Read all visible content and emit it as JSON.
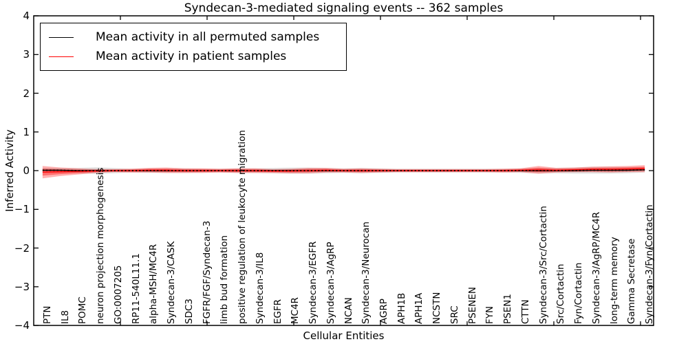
{
  "title": "Syndecan-3-mediated signaling events -- 362 samples",
  "axes": {
    "ylabel": "Inferred Activity",
    "xlabel": "Cellular Entities",
    "yticks": [
      4,
      3,
      2,
      1,
      0,
      -1,
      -2,
      -3,
      -4
    ],
    "ylim": [
      -4,
      4
    ]
  },
  "legend": {
    "entries": [
      {
        "label": "Mean activity in all permuted samples",
        "color": "#000000"
      },
      {
        "label": "Mean activity in patient samples",
        "color": "#ff0000"
      }
    ]
  },
  "colors": {
    "permuted_line": "#000000",
    "patient_line": "#ff0000",
    "permuted_band": "rgba(0,0,0,0.10)",
    "permuted_band_inner": "rgba(0,0,0,0.11)",
    "patient_band": "rgba(255,0,0,0.30)",
    "patient_band_inner": "rgba(255,0,0,0.38)",
    "frame": "#000000"
  },
  "chart_data": {
    "type": "line",
    "title": "Syndecan-3-mediated signaling events -- 362 samples",
    "xlabel": "Cellular Entities",
    "ylabel": "Inferred Activity",
    "ylim": [
      -4,
      4
    ],
    "grid": false,
    "legend_position": "upper left",
    "categories": [
      "PTN",
      "IL8",
      "POMC",
      "neuron projection morphogenesis",
      "GO:0007205",
      "RP11-540L11.1",
      "alpha-MSH/MC4R",
      "Syndecan-3/CASK",
      "SDC3",
      "FGFR/FGF/Syndecan-3",
      "limb bud formation",
      "positive regulation of leukocyte migration",
      "Syndecan-3/IL8",
      "EGFR",
      "MC4R",
      "Syndecan-3/EGFR",
      "Syndecan-3/AgRP",
      "NCAN",
      "Syndecan-3/Neurocan",
      "AGRP",
      "APH1B",
      "APH1A",
      "NCSTN",
      "SRC",
      "PSENEN",
      "FYN",
      "PSEN1",
      "CTTN",
      "Syndecan-3/Src/Cortactin",
      "Src/Cortactin",
      "Fyn/Cortactin",
      "Syndecan-3/AgRP/MC4R",
      "long-term memory",
      "Gamma Secretase",
      "Syndecan-3/Fyn/Cortactin"
    ],
    "series": [
      {
        "name": "Mean activity in all permuted samples",
        "color": "#000000",
        "values": [
          0.01,
          0.01,
          0,
          0,
          0,
          0,
          0,
          0,
          0,
          0,
          0,
          0,
          0,
          0,
          0,
          0,
          0,
          0,
          0,
          0,
          0,
          0,
          0,
          0,
          0,
          0,
          0,
          0,
          0,
          0,
          0,
          0.01,
          0.01,
          0.01,
          0.02
        ],
        "band_halfwidth": [
          0.06,
          0.06,
          0.07,
          0.09,
          0.07,
          0.05,
          0.06,
          0.06,
          0.06,
          0.05,
          0.05,
          0.06,
          0.06,
          0.07,
          0.08,
          0.08,
          0.07,
          0.06,
          0.07,
          0.06,
          0.05,
          0.05,
          0.05,
          0.05,
          0.05,
          0.05,
          0.05,
          0.06,
          0.07,
          0.07,
          0.08,
          0.09,
          0.09,
          0.08,
          0.07
        ]
      },
      {
        "name": "Mean activity in patient samples",
        "color": "#ff0000",
        "values": [
          -0.04,
          -0.03,
          -0.02,
          -0.01,
          0,
          0,
          0.01,
          0.01,
          0,
          0,
          0,
          0,
          0,
          -0.01,
          -0.01,
          0,
          0.01,
          0,
          0,
          0,
          0,
          0,
          0,
          0,
          0,
          0,
          0,
          0.01,
          0.02,
          0.01,
          0.02,
          0.03,
          0.03,
          0.04,
          0.05
        ],
        "band_halfwidth": [
          0.16,
          0.11,
          0.08,
          0.05,
          0.04,
          0.05,
          0.06,
          0.07,
          0.06,
          0.06,
          0.05,
          0.06,
          0.06,
          0.05,
          0.06,
          0.07,
          0.06,
          0.05,
          0.06,
          0.05,
          0.04,
          0.04,
          0.04,
          0.04,
          0.04,
          0.04,
          0.05,
          0.05,
          0.1,
          0.06,
          0.06,
          0.07,
          0.08,
          0.08,
          0.09
        ]
      }
    ]
  }
}
